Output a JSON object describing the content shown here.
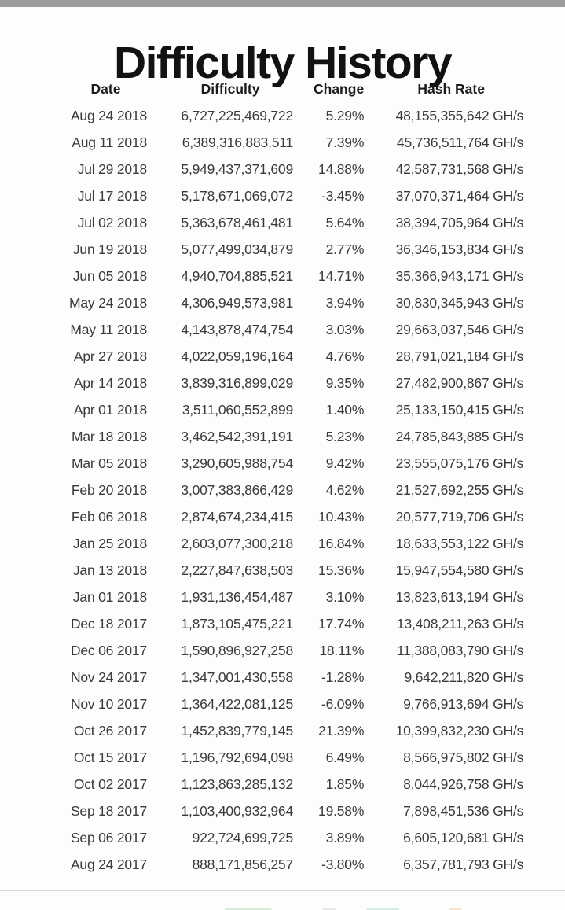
{
  "page": {
    "title": "Difficulty History"
  },
  "colors": {
    "positive_change": "#339933",
    "negative_change": "#cc4444",
    "top_bar": "#9b9b9b"
  },
  "table": {
    "columns": [
      "Date",
      "Difficulty",
      "Change",
      "Hash Rate"
    ],
    "rows": [
      {
        "date": "Aug 24 2018",
        "difficulty": "6,727,225,469,722",
        "change": "5.29%",
        "hash_rate": "48,155,355,642 GH/s"
      },
      {
        "date": "Aug 11 2018",
        "difficulty": "6,389,316,883,511",
        "change": "7.39%",
        "hash_rate": "45,736,511,764 GH/s"
      },
      {
        "date": "Jul 29 2018",
        "difficulty": "5,949,437,371,609",
        "change": "14.88%",
        "hash_rate": "42,587,731,568 GH/s"
      },
      {
        "date": "Jul 17 2018",
        "difficulty": "5,178,671,069,072",
        "change": "-3.45%",
        "hash_rate": "37,070,371,464 GH/s"
      },
      {
        "date": "Jul 02 2018",
        "difficulty": "5,363,678,461,481",
        "change": "5.64%",
        "hash_rate": "38,394,705,964 GH/s"
      },
      {
        "date": "Jun 19 2018",
        "difficulty": "5,077,499,034,879",
        "change": "2.77%",
        "hash_rate": "36,346,153,834 GH/s"
      },
      {
        "date": "Jun 05 2018",
        "difficulty": "4,940,704,885,521",
        "change": "14.71%",
        "hash_rate": "35,366,943,171 GH/s"
      },
      {
        "date": "May 24 2018",
        "difficulty": "4,306,949,573,981",
        "change": "3.94%",
        "hash_rate": "30,830,345,943 GH/s"
      },
      {
        "date": "May 11 2018",
        "difficulty": "4,143,878,474,754",
        "change": "3.03%",
        "hash_rate": "29,663,037,546 GH/s"
      },
      {
        "date": "Apr 27 2018",
        "difficulty": "4,022,059,196,164",
        "change": "4.76%",
        "hash_rate": "28,791,021,184 GH/s"
      },
      {
        "date": "Apr 14 2018",
        "difficulty": "3,839,316,899,029",
        "change": "9.35%",
        "hash_rate": "27,482,900,867 GH/s"
      },
      {
        "date": "Apr 01 2018",
        "difficulty": "3,511,060,552,899",
        "change": "1.40%",
        "hash_rate": "25,133,150,415 GH/s"
      },
      {
        "date": "Mar 18 2018",
        "difficulty": "3,462,542,391,191",
        "change": "5.23%",
        "hash_rate": "24,785,843,885 GH/s"
      },
      {
        "date": "Mar 05 2018",
        "difficulty": "3,290,605,988,754",
        "change": "9.42%",
        "hash_rate": "23,555,075,176 GH/s"
      },
      {
        "date": "Feb 20 2018",
        "difficulty": "3,007,383,866,429",
        "change": "4.62%",
        "hash_rate": "21,527,692,255 GH/s"
      },
      {
        "date": "Feb 06 2018",
        "difficulty": "2,874,674,234,415",
        "change": "10.43%",
        "hash_rate": "20,577,719,706 GH/s"
      },
      {
        "date": "Jan 25 2018",
        "difficulty": "2,603,077,300,218",
        "change": "16.84%",
        "hash_rate": "18,633,553,122 GH/s"
      },
      {
        "date": "Jan 13 2018",
        "difficulty": "2,227,847,638,503",
        "change": "15.36%",
        "hash_rate": "15,947,554,580 GH/s"
      },
      {
        "date": "Jan 01 2018",
        "difficulty": "1,931,136,454,487",
        "change": "3.10%",
        "hash_rate": "13,823,613,194 GH/s"
      },
      {
        "date": "Dec 18 2017",
        "difficulty": "1,873,105,475,221",
        "change": "17.74%",
        "hash_rate": "13,408,211,263 GH/s"
      },
      {
        "date": "Dec 06 2017",
        "difficulty": "1,590,896,927,258",
        "change": "18.11%",
        "hash_rate": "11,388,083,790 GH/s"
      },
      {
        "date": "Nov 24 2017",
        "difficulty": "1,347,001,430,558",
        "change": "-1.28%",
        "hash_rate": "9,642,211,820 GH/s"
      },
      {
        "date": "Nov 10 2017",
        "difficulty": "1,364,422,081,125",
        "change": "-6.09%",
        "hash_rate": "9,766,913,694 GH/s"
      },
      {
        "date": "Oct 26 2017",
        "difficulty": "1,452,839,779,145",
        "change": "21.39%",
        "hash_rate": "10,399,832,230 GH/s"
      },
      {
        "date": "Oct 15 2017",
        "difficulty": "1,196,792,694,098",
        "change": "6.49%",
        "hash_rate": "8,566,975,802 GH/s"
      },
      {
        "date": "Oct 02 2017",
        "difficulty": "1,123,863,285,132",
        "change": "1.85%",
        "hash_rate": "8,044,926,758 GH/s"
      },
      {
        "date": "Sep 18 2017",
        "difficulty": "1,103,400,932,964",
        "change": "19.58%",
        "hash_rate": "7,898,451,536 GH/s"
      },
      {
        "date": "Sep 06 2017",
        "difficulty": "922,724,699,725",
        "change": "3.89%",
        "hash_rate": "6,605,120,681 GH/s"
      },
      {
        "date": "Aug 24 2017",
        "difficulty": "888,171,856,257",
        "change": "-3.80%",
        "hash_rate": "6,357,781,793 GH/s"
      }
    ]
  }
}
